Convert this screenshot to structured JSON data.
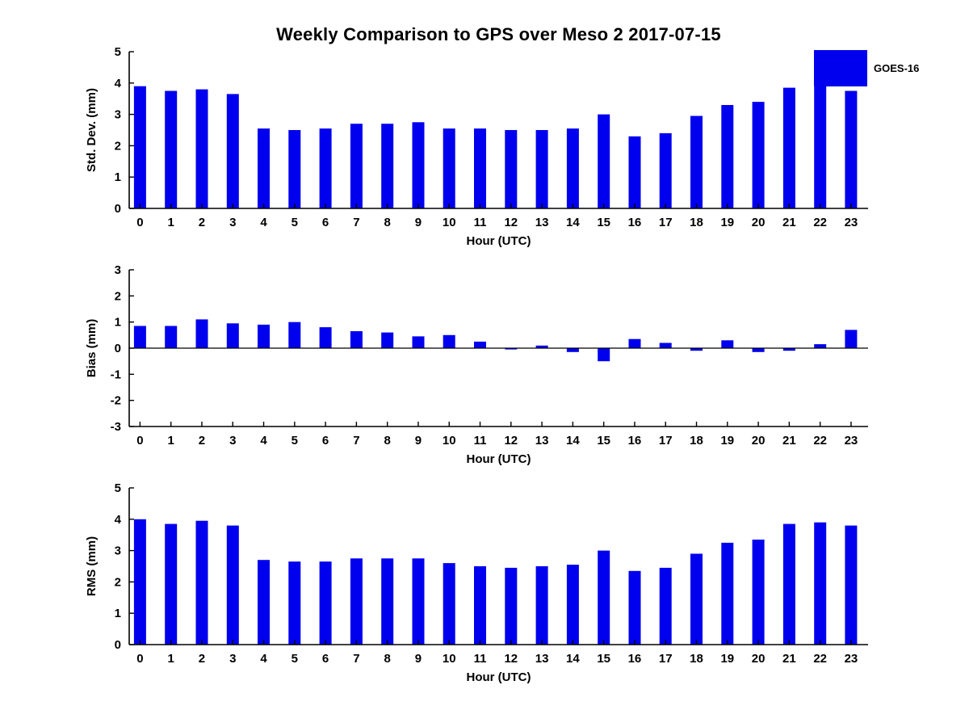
{
  "page": {
    "title": "Weekly Comparison to GPS over Meso 2 2017-07-15",
    "background": "#ffffff",
    "text_color": "#000000",
    "bar_color": "#0000ee",
    "legend": {
      "label": "GOES-16",
      "position": "northeast"
    }
  },
  "chart_data": [
    {
      "type": "bar",
      "title": "",
      "ylabel": "Std. Dev. (mm)",
      "xlabel": "Hour (UTC)",
      "ylim": [
        0,
        5
      ],
      "yticks": [
        0,
        1,
        2,
        3,
        4,
        5
      ],
      "grid": false,
      "legend_entries": [
        "GOES-16"
      ],
      "categories": [
        0,
        1,
        2,
        3,
        4,
        5,
        6,
        7,
        8,
        9,
        10,
        11,
        12,
        13,
        14,
        15,
        16,
        17,
        18,
        19,
        20,
        21,
        22,
        23
      ],
      "values": [
        3.9,
        3.75,
        3.8,
        3.65,
        2.55,
        2.5,
        2.55,
        2.7,
        2.7,
        2.75,
        2.55,
        2.55,
        2.5,
        2.5,
        2.55,
        3.0,
        2.3,
        2.4,
        2.95,
        3.3,
        3.4,
        3.85,
        3.9,
        3.75
      ]
    },
    {
      "type": "bar",
      "title": "",
      "ylabel": "Bias (mm)",
      "xlabel": "Hour (UTC)",
      "ylim": [
        -3,
        3
      ],
      "yticks": [
        -3,
        -2,
        -1,
        0,
        1,
        2,
        3
      ],
      "grid": false,
      "legend_entries": [
        "GOES-16"
      ],
      "categories": [
        0,
        1,
        2,
        3,
        4,
        5,
        6,
        7,
        8,
        9,
        10,
        11,
        12,
        13,
        14,
        15,
        16,
        17,
        18,
        19,
        20,
        21,
        22,
        23
      ],
      "values": [
        0.85,
        0.85,
        1.1,
        0.95,
        0.9,
        1.0,
        0.8,
        0.65,
        0.6,
        0.45,
        0.5,
        0.25,
        -0.05,
        0.1,
        -0.15,
        -0.5,
        0.35,
        0.2,
        -0.1,
        0.3,
        -0.15,
        -0.1,
        0.15,
        0.7
      ]
    },
    {
      "type": "bar",
      "title": "",
      "ylabel": "RMS (mm)",
      "xlabel": "Hour (UTC)",
      "ylim": [
        0,
        5
      ],
      "yticks": [
        0,
        1,
        2,
        3,
        4,
        5
      ],
      "grid": false,
      "legend_entries": [
        "GOES-16"
      ],
      "categories": [
        0,
        1,
        2,
        3,
        4,
        5,
        6,
        7,
        8,
        9,
        10,
        11,
        12,
        13,
        14,
        15,
        16,
        17,
        18,
        19,
        20,
        21,
        22,
        23
      ],
      "values": [
        4.0,
        3.85,
        3.95,
        3.8,
        2.7,
        2.65,
        2.65,
        2.75,
        2.75,
        2.75,
        2.6,
        2.5,
        2.45,
        2.5,
        2.55,
        3.0,
        2.35,
        2.45,
        2.9,
        3.25,
        3.35,
        3.85,
        3.9,
        3.8
      ]
    }
  ]
}
